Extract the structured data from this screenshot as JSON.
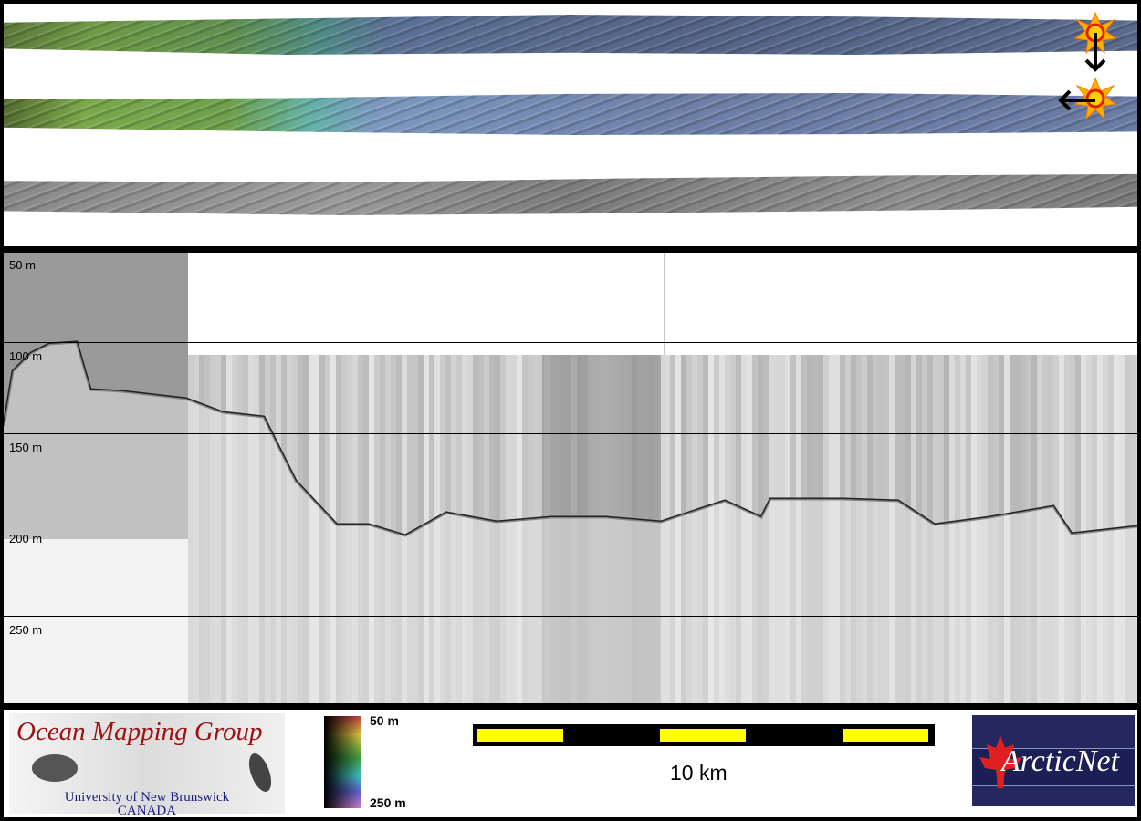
{
  "swaths": [
    {
      "kind": "colored-bathymetry"
    },
    {
      "kind": "colored-bathymetry"
    },
    {
      "kind": "grayscale-backscatter"
    }
  ],
  "markers": {
    "icons": [
      "sun-icon",
      "arrow-down-icon",
      "sun-icon",
      "arrow-left-icon"
    ]
  },
  "profile": {
    "depth_labels": [
      "50 m",
      "100 m",
      "150 m",
      "200 m",
      "250 m"
    ]
  },
  "footer": {
    "omg_logo": {
      "title": "Ocean Mapping Group",
      "line1": "University of New Brunswick",
      "line2": "CANADA"
    },
    "colorbar": {
      "top_label": "50 m",
      "bottom_label": "250 m"
    },
    "scalebar": {
      "label": "10 km",
      "colors": {
        "bar": "#000000",
        "segments": "#ffff00"
      }
    },
    "arcticnet_logo": {
      "text": "ArcticNet"
    }
  }
}
